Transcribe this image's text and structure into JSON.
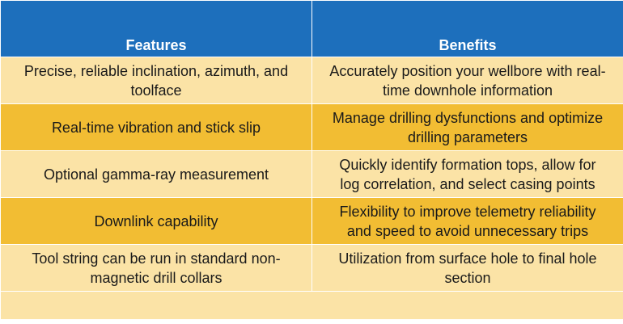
{
  "table": {
    "headers": [
      "Features",
      "Benefits"
    ],
    "rows": [
      {
        "feature": "Precise, reliable inclination, azimuth, and toolface",
        "benefit": "Accurately position your wellbore with real-time downhole information"
      },
      {
        "feature": "Real-time vibration and stick slip",
        "benefit": "Manage drilling dysfunctions and optimize drilling parameters"
      },
      {
        "feature": "Optional gamma-ray measurement",
        "benefit": "Quickly identify formation tops, allow for log correlation, and select casing points"
      },
      {
        "feature": "Downlink capability",
        "benefit": "Flexibility to improve telemetry reliability and speed to avoid unnecessary trips"
      },
      {
        "feature": "Tool string can be run in standard non-magnetic drill collars",
        "benefit": "Utilization from surface hole to final hole section"
      }
    ]
  },
  "colors": {
    "header_bg": "#1d6fbc",
    "header_text": "#ffffff",
    "row_light": "#fbe3a6",
    "row_dark": "#f2bd33"
  }
}
